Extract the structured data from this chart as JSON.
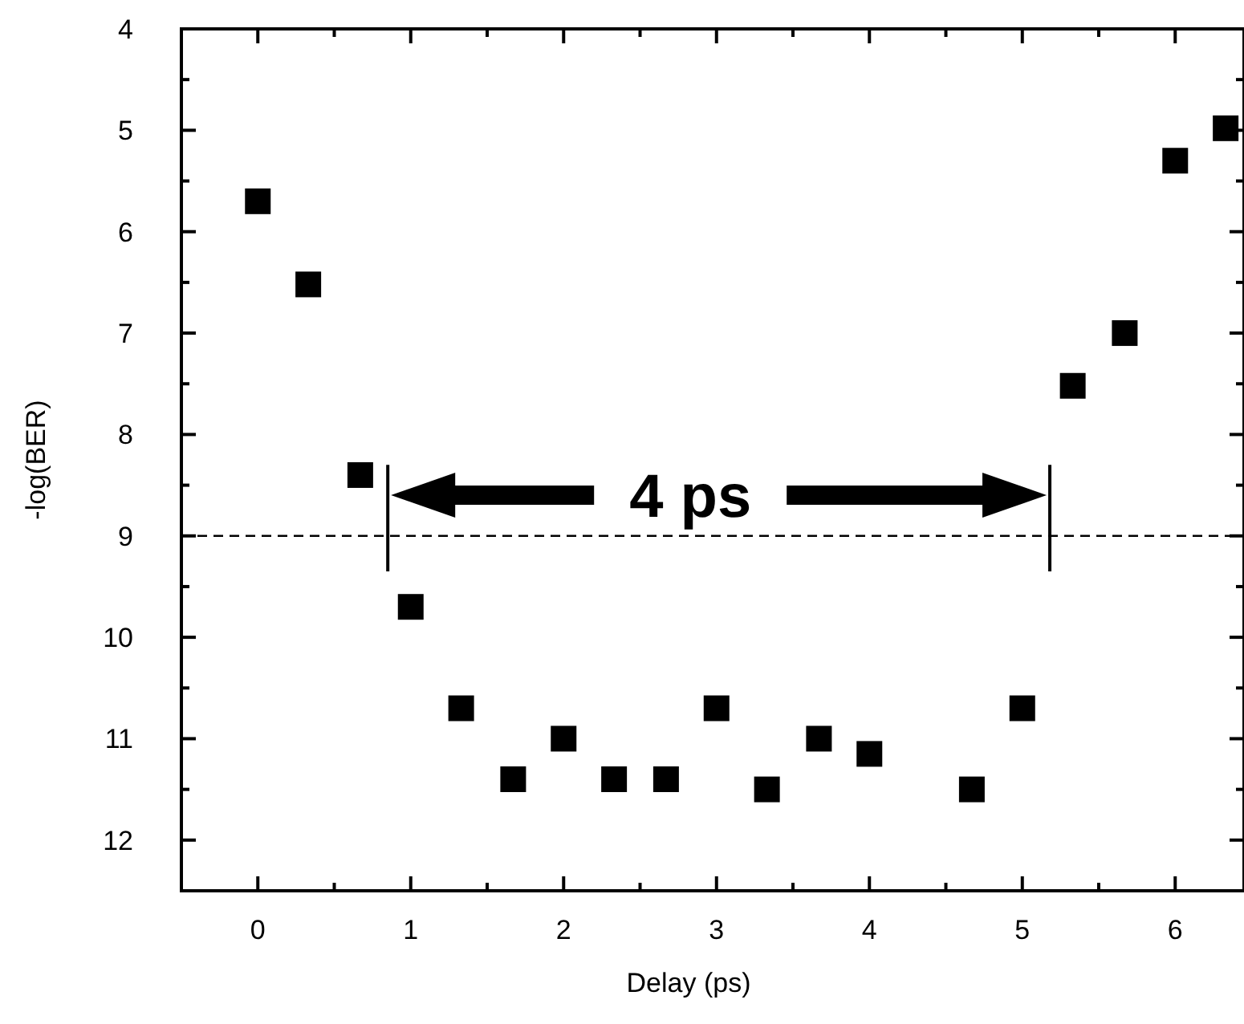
{
  "chart_data": {
    "type": "scatter",
    "xlabel": "Delay (ps)",
    "ylabel": "-log(BER)",
    "x": [
      0,
      0.33,
      0.67,
      1.0,
      1.33,
      1.67,
      2.0,
      2.33,
      2.67,
      3.0,
      3.33,
      3.67,
      4.0,
      4.67,
      5.0,
      5.33,
      5.67,
      6.0,
      6.33
    ],
    "values": [
      5.7,
      6.52,
      8.4,
      9.7,
      10.7,
      11.4,
      11.0,
      11.4,
      11.4,
      10.7,
      11.5,
      11.0,
      11.15,
      11.5,
      10.7,
      7.52,
      7.0,
      5.3,
      4.98
    ],
    "color": "#000000",
    "marker": "square",
    "xlim": [
      -0.5,
      6.45
    ],
    "ylim": [
      12.5,
      4
    ],
    "xticks": [
      0,
      {
        "value": 0.5,
        "label": null
      },
      1,
      {
        "value": 1.5,
        "label": null
      },
      2,
      {
        "value": 2.5,
        "label": null
      },
      3,
      {
        "value": 3.5,
        "label": null
      },
      4,
      {
        "value": 4.5,
        "label": null
      },
      5,
      {
        "value": 5.5,
        "label": null
      },
      6
    ],
    "yticks": [
      4,
      {
        "value": 4.5,
        "label": null
      },
      5,
      {
        "value": 5.5,
        "label": null
      },
      6,
      {
        "value": 6.5,
        "label": null
      },
      7,
      {
        "value": 7.5,
        "label": null
      },
      8,
      {
        "value": 8.5,
        "label": null
      },
      9,
      {
        "value": 9.5,
        "label": null
      },
      10,
      {
        "value": 10.5,
        "label": null
      },
      11,
      {
        "value": 11.5,
        "label": null
      },
      12
    ],
    "ref_lines": [
      {
        "axis": "y",
        "value": 9,
        "line_style": "dashed",
        "color": "#000000"
      }
    ],
    "annotations": [
      "4 ps"
    ]
  }
}
